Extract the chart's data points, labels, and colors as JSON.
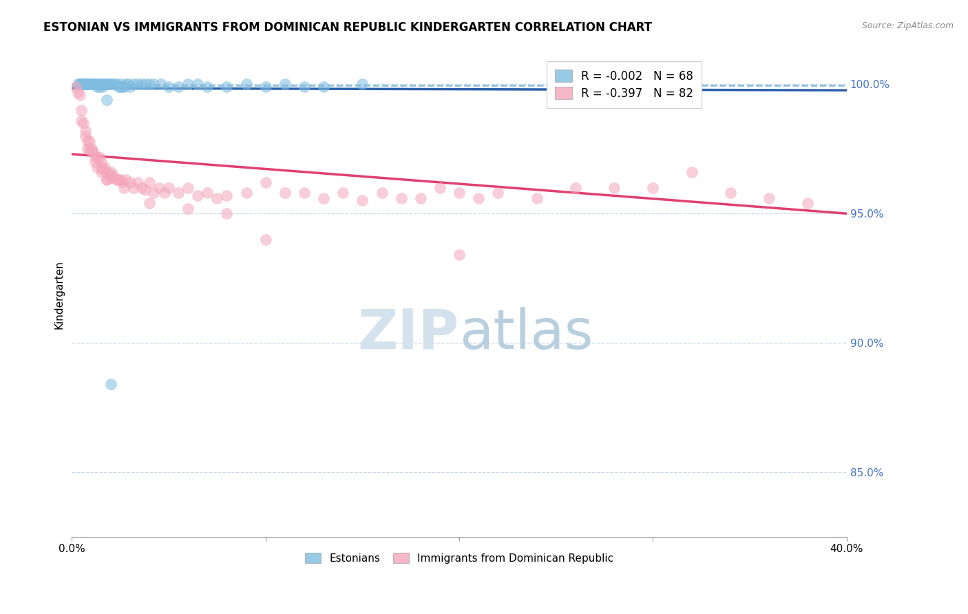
{
  "title": "ESTONIAN VS IMMIGRANTS FROM DOMINICAN REPUBLIC KINDERGARTEN CORRELATION CHART",
  "source": "Source: ZipAtlas.com",
  "ylabel": "Kindergarten",
  "x_min": 0.0,
  "x_max": 0.4,
  "y_min": 0.825,
  "y_max": 1.012,
  "y_ticks_right": [
    0.85,
    0.9,
    0.95,
    1.0
  ],
  "y_tick_labels_right": [
    "85.0%",
    "90.0%",
    "95.0%",
    "100.0%"
  ],
  "legend_label1": "R = -0.002   N = 68",
  "legend_label2": "R = -0.397   N = 82",
  "legend_label_short1": "Estonians",
  "legend_label_short2": "Immigrants from Dominican Republic",
  "blue_color": "#7fbde0",
  "pink_color": "#f4a7bc",
  "blue_line_color": "#2b5faa",
  "pink_line_color": "#e04070",
  "dashed_line_color": "#85bcd8",
  "grid_color": "#c8d8e8",
  "right_axis_color": "#4472c4",
  "blue_scatter_x": [
    0.003,
    0.004,
    0.005,
    0.005,
    0.006,
    0.006,
    0.007,
    0.007,
    0.008,
    0.008,
    0.009,
    0.009,
    0.01,
    0.01,
    0.011,
    0.011,
    0.012,
    0.012,
    0.013,
    0.013,
    0.014,
    0.014,
    0.015,
    0.015,
    0.016,
    0.016,
    0.017,
    0.018,
    0.018,
    0.019,
    0.02,
    0.021,
    0.022,
    0.023,
    0.024,
    0.025,
    0.026,
    0.027,
    0.028,
    0.029,
    0.03,
    0.032,
    0.034,
    0.036,
    0.038,
    0.04,
    0.042,
    0.046,
    0.05,
    0.055,
    0.06,
    0.065,
    0.07,
    0.08,
    0.09,
    0.1,
    0.11,
    0.12,
    0.13,
    0.15,
    0.004,
    0.005,
    0.006,
    0.007,
    0.008,
    0.018,
    0.02,
    0.025
  ],
  "blue_scatter_y": [
    1.0,
    1.0,
    1.0,
    1.0,
    1.0,
    1.0,
    1.0,
    1.0,
    1.0,
    1.0,
    1.0,
    1.0,
    1.0,
    1.0,
    1.0,
    1.0,
    1.0,
    1.0,
    1.0,
    0.999,
    1.0,
    0.999,
    1.0,
    1.0,
    1.0,
    0.999,
    1.0,
    1.0,
    1.0,
    1.0,
    1.0,
    1.0,
    1.0,
    1.0,
    0.999,
    1.0,
    0.999,
    0.999,
    1.0,
    1.0,
    0.999,
    1.0,
    1.0,
    1.0,
    1.0,
    1.0,
    1.0,
    1.0,
    0.999,
    0.999,
    1.0,
    1.0,
    0.999,
    0.999,
    1.0,
    0.999,
    1.0,
    0.999,
    0.999,
    1.0,
    1.0,
    1.0,
    1.0,
    1.0,
    1.0,
    0.994,
    0.884,
    0.999
  ],
  "pink_scatter_x": [
    0.002,
    0.003,
    0.004,
    0.005,
    0.005,
    0.006,
    0.007,
    0.007,
    0.008,
    0.008,
    0.009,
    0.01,
    0.01,
    0.011,
    0.012,
    0.013,
    0.013,
    0.014,
    0.015,
    0.015,
    0.016,
    0.017,
    0.018,
    0.018,
    0.019,
    0.02,
    0.02,
    0.021,
    0.022,
    0.023,
    0.024,
    0.025,
    0.026,
    0.027,
    0.028,
    0.03,
    0.032,
    0.034,
    0.036,
    0.038,
    0.04,
    0.042,
    0.045,
    0.048,
    0.05,
    0.055,
    0.06,
    0.065,
    0.07,
    0.075,
    0.08,
    0.09,
    0.1,
    0.11,
    0.12,
    0.13,
    0.14,
    0.15,
    0.16,
    0.17,
    0.18,
    0.19,
    0.2,
    0.21,
    0.22,
    0.24,
    0.26,
    0.28,
    0.3,
    0.32,
    0.34,
    0.36,
    0.38,
    0.009,
    0.012,
    0.015,
    0.018,
    0.04,
    0.06,
    0.08,
    0.1,
    0.2
  ],
  "pink_scatter_y": [
    0.999,
    0.997,
    0.996,
    0.99,
    0.986,
    0.985,
    0.982,
    0.98,
    0.978,
    0.975,
    0.978,
    0.974,
    0.975,
    0.974,
    0.972,
    0.972,
    0.968,
    0.972,
    0.97,
    0.968,
    0.967,
    0.968,
    0.966,
    0.963,
    0.965,
    0.966,
    0.964,
    0.965,
    0.964,
    0.963,
    0.963,
    0.963,
    0.962,
    0.96,
    0.963,
    0.962,
    0.96,
    0.962,
    0.96,
    0.959,
    0.962,
    0.958,
    0.96,
    0.958,
    0.96,
    0.958,
    0.96,
    0.957,
    0.958,
    0.956,
    0.957,
    0.958,
    0.962,
    0.958,
    0.958,
    0.956,
    0.958,
    0.955,
    0.958,
    0.956,
    0.956,
    0.96,
    0.958,
    0.956,
    0.958,
    0.956,
    0.96,
    0.96,
    0.96,
    0.966,
    0.958,
    0.956,
    0.954,
    0.975,
    0.97,
    0.966,
    0.963,
    0.954,
    0.952,
    0.95,
    0.94,
    0.934
  ],
  "blue_trend_x": [
    0.0,
    0.4
  ],
  "blue_trend_y": [
    0.9985,
    0.9977
  ],
  "pink_trend_x": [
    0.0,
    0.4
  ],
  "pink_trend_y": [
    0.973,
    0.95
  ],
  "dashed_line_y": 0.9995
}
